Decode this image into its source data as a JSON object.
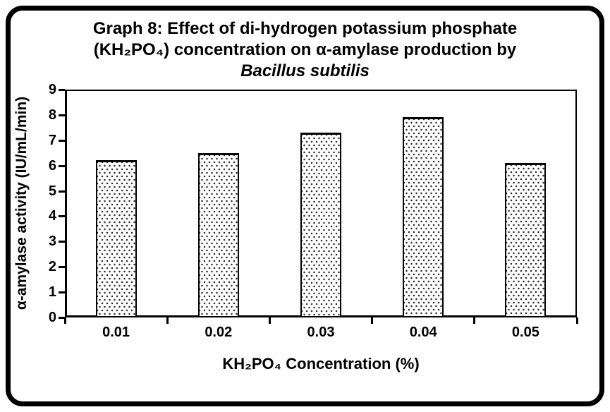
{
  "figure": {
    "background_color": "#ffffff",
    "border_color": "#000000",
    "text_color": "#000000"
  },
  "chart_data": {
    "type": "bar",
    "title_lines": [
      "Graph 8: Effect of di-hydrogen potassium phosphate",
      "(KH₂PO₄) concentration on α-amylase production by",
      "Bacillus subtilis"
    ],
    "categories": [
      "0.01",
      "0.02",
      "0.03",
      "0.04",
      "0.05"
    ],
    "values": [
      6.2,
      6.5,
      7.3,
      7.9,
      6.1
    ],
    "xlabel": "KH₂PO₄ Concentration (%)",
    "ylabel": "α-amylase activity (IU/mL/min)",
    "ylim": [
      0,
      9
    ],
    "yticks": [
      0,
      1,
      2,
      3,
      4,
      5,
      6,
      7,
      8,
      9
    ],
    "grid": false,
    "legend": "none",
    "bar_fill": "white with dotted pattern",
    "bar_pattern_dot_color": "#2e2e2e",
    "bar_border_color": "#000000",
    "axis_color": "#000000"
  }
}
